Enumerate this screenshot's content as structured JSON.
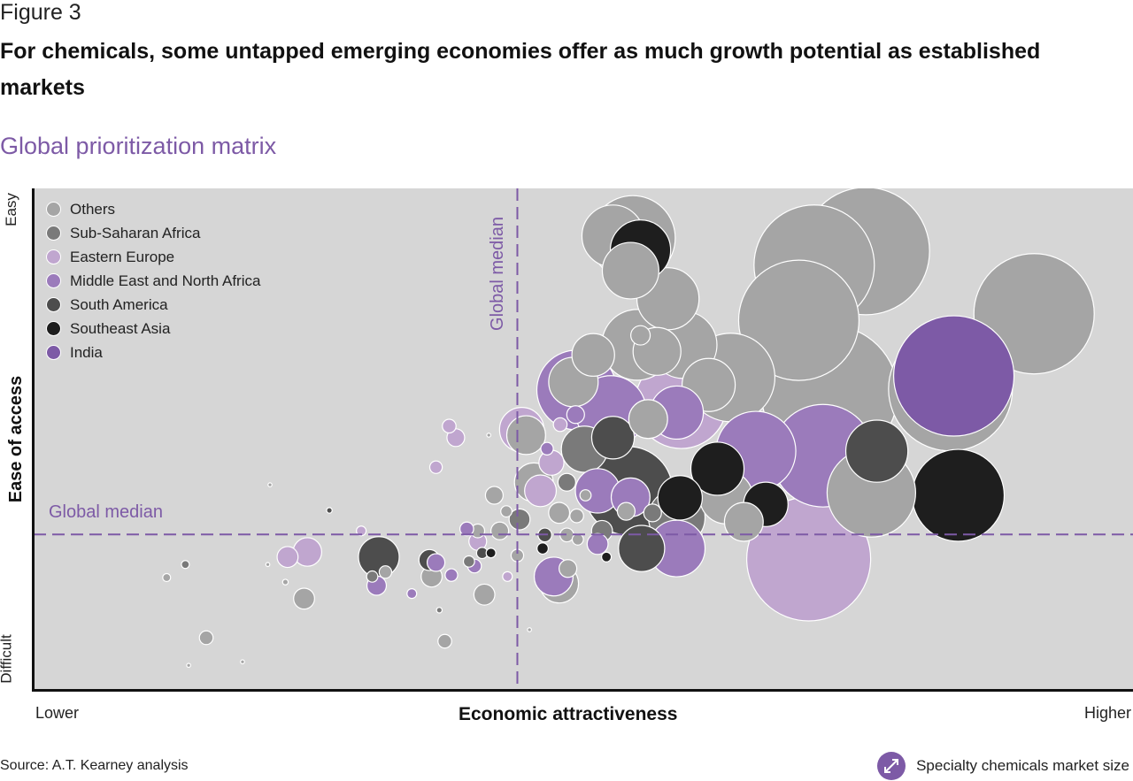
{
  "figure_label": "Figure 3",
  "title": "For chemicals, some untapped emerging economies offer as much growth potential as established markets",
  "subtitle": "Global prioritization matrix",
  "source": "Source: A.T. Kearney analysis",
  "size_key": {
    "label": "Specialty chemicals market size",
    "icon": "diagonal-double-arrow-icon"
  },
  "chart_data": {
    "type": "scatter",
    "variant": "bubble",
    "xlabel": "Economic attractiveness",
    "ylabel": "Ease of access",
    "x_ticks": {
      "low": "Lower",
      "high": "Higher"
    },
    "y_ticks": {
      "low": "Difficult",
      "high": "Easy"
    },
    "xlim": [
      0,
      100
    ],
    "ylim": [
      0,
      100
    ],
    "grid": false,
    "legend_position": "top-left",
    "background_color": "#d6d6d6",
    "bubble_stroke": "#ffffff",
    "median_color": "#7d5aa6",
    "medians": {
      "x": 44,
      "y": 31,
      "x_label": "Global median",
      "y_label": "Global median"
    },
    "series": [
      {
        "name": "Others",
        "color": "#a5a5a5",
        "points": [
          [
            75.7,
            87.5,
            51.8
          ],
          [
            71.0,
            84.7,
            46.2
          ],
          [
            91.0,
            75.0,
            46.2
          ],
          [
            69.6,
            73.7,
            46.2
          ],
          [
            83.4,
            60.0,
            49.0
          ],
          [
            72.4,
            59.1,
            59.3
          ],
          [
            76.2,
            39.3,
            25.0
          ],
          [
            63.4,
            62.3,
            25.0
          ],
          [
            59.1,
            68.8,
            14.4
          ],
          [
            54.5,
            90.1,
            23.0
          ],
          [
            52.7,
            90.5,
            12.3
          ],
          [
            54.3,
            83.6,
            10.2
          ],
          [
            57.7,
            78.0,
            12.3
          ],
          [
            54.9,
            68.8,
            16.0
          ],
          [
            56.7,
            67.5,
            7.3
          ],
          [
            55.2,
            70.7,
            1.2
          ],
          [
            61.4,
            60.8,
            9.0
          ],
          [
            55.9,
            54.0,
            4.8
          ],
          [
            49.1,
            61.4,
            7.8
          ],
          [
            50.9,
            66.8,
            5.8
          ],
          [
            44.8,
            50.8,
            4.8
          ],
          [
            45.5,
            41.4,
            4.8
          ],
          [
            53.9,
            35.6,
            1.0
          ],
          [
            63.0,
            38.4,
            9.0
          ],
          [
            64.6,
            33.5,
            4.8
          ],
          [
            47.8,
            21.2,
            4.8
          ],
          [
            48.6,
            24.2,
            1.0
          ],
          [
            47.8,
            35.3,
            1.4
          ],
          [
            49.4,
            34.7,
            0.6
          ],
          [
            48.5,
            30.9,
            0.6
          ],
          [
            49.5,
            30.0,
            0.4
          ],
          [
            50.2,
            38.8,
            0.4
          ],
          [
            43.0,
            35.6,
            0.4
          ],
          [
            41.9,
            38.8,
            1.0
          ],
          [
            42.4,
            31.7,
            1.0
          ],
          [
            40.4,
            31.7,
            0.6
          ],
          [
            41.0,
            19.0,
            1.4
          ],
          [
            44.0,
            26.8,
            0.5
          ],
          [
            36.2,
            22.6,
            1.4
          ],
          [
            37.4,
            9.7,
            0.6
          ],
          [
            32.0,
            23.5,
            0.5
          ],
          [
            24.6,
            18.2,
            1.4
          ],
          [
            15.7,
            10.4,
            0.6
          ],
          [
            12.1,
            22.4,
            0.2
          ],
          [
            14.1,
            4.9,
            0.05
          ],
          [
            19.0,
            5.6,
            0.05
          ],
          [
            21.5,
            40.9,
            0.05
          ],
          [
            22.9,
            21.5,
            0.1
          ],
          [
            21.3,
            25.0,
            0.05
          ],
          [
            45.1,
            12.0,
            0.05
          ],
          [
            41.4,
            50.8,
            0.05
          ]
        ]
      },
      {
        "name": "Sub-Saharan Africa",
        "color": "#7a7a7a",
        "points": [
          [
            50.1,
            48.0,
            6.8
          ],
          [
            48.5,
            41.4,
            1.0
          ],
          [
            58.5,
            34.4,
            10.2
          ],
          [
            56.3,
            35.3,
            1.0
          ],
          [
            51.7,
            31.7,
            1.4
          ],
          [
            44.2,
            34.0,
            1.4
          ],
          [
            39.6,
            25.6,
            0.4
          ],
          [
            30.8,
            22.6,
            0.4
          ],
          [
            13.8,
            25.0,
            0.2
          ],
          [
            36.9,
            15.9,
            0.1
          ]
        ]
      },
      {
        "name": "Eastern Europe",
        "color": "#c0a6cf",
        "points": [
          [
            70.5,
            26.1,
            49.0
          ],
          [
            58.9,
            57.3,
            27.0
          ],
          [
            44.4,
            51.9,
            6.3
          ],
          [
            47.1,
            45.3,
            2.0
          ],
          [
            46.1,
            39.7,
            3.2
          ],
          [
            40.4,
            29.6,
            1.0
          ],
          [
            43.1,
            22.6,
            0.3
          ],
          [
            24.9,
            27.5,
            2.6
          ],
          [
            23.1,
            26.5,
            1.4
          ],
          [
            37.8,
            52.6,
            0.6
          ],
          [
            38.4,
            50.3,
            1.0
          ],
          [
            36.6,
            44.4,
            0.5
          ],
          [
            29.8,
            31.7,
            0.3
          ],
          [
            47.9,
            52.9,
            0.6
          ]
        ]
      },
      {
        "name": "Middle East and North Africa",
        "color": "#9b7bbb",
        "points": [
          [
            71.8,
            46.7,
            33.6
          ],
          [
            65.7,
            47.6,
            20.3
          ],
          [
            58.5,
            55.3,
            9.0
          ],
          [
            52.5,
            55.6,
            16.0
          ],
          [
            49.4,
            59.8,
            20.3
          ],
          [
            49.3,
            54.9,
            1.0
          ],
          [
            46.7,
            48.1,
            0.5
          ],
          [
            54.3,
            38.4,
            4.8
          ],
          [
            51.3,
            39.7,
            6.3
          ],
          [
            58.5,
            28.2,
            10.2
          ],
          [
            51.3,
            29.1,
            1.4
          ],
          [
            47.3,
            22.6,
            4.8
          ],
          [
            39.4,
            32.1,
            0.6
          ],
          [
            40.1,
            24.7,
            0.6
          ],
          [
            36.6,
            25.4,
            1.0
          ],
          [
            38.0,
            22.9,
            0.5
          ],
          [
            31.2,
            20.8,
            1.2
          ],
          [
            34.4,
            19.2,
            0.3
          ]
        ]
      },
      {
        "name": "South America",
        "color": "#4d4d4d",
        "points": [
          [
            76.7,
            47.6,
            12.3
          ],
          [
            52.7,
            50.3,
            5.8
          ],
          [
            54.1,
            39.7,
            25.0
          ],
          [
            55.3,
            28.2,
            6.8
          ],
          [
            46.5,
            30.9,
            0.6
          ],
          [
            40.8,
            27.3,
            0.4
          ],
          [
            36.0,
            25.9,
            1.4
          ],
          [
            31.4,
            26.5,
            5.3
          ],
          [
            26.9,
            35.8,
            0.1
          ]
        ]
      },
      {
        "name": "Southeast Asia",
        "color": "#1e1e1e",
        "points": [
          [
            84.1,
            38.8,
            27.0
          ],
          [
            55.2,
            87.7,
            11.6
          ],
          [
            58.8,
            38.3,
            6.3
          ],
          [
            62.2,
            44.1,
            9.0
          ],
          [
            66.6,
            37.0,
            6.3
          ],
          [
            52.1,
            26.5,
            0.3
          ],
          [
            46.3,
            28.2,
            0.4
          ],
          [
            41.6,
            27.3,
            0.3
          ]
        ]
      },
      {
        "name": "India",
        "color": "#7d5aa6",
        "points": [
          [
            83.7,
            62.6,
            46.2
          ]
        ]
      }
    ]
  }
}
